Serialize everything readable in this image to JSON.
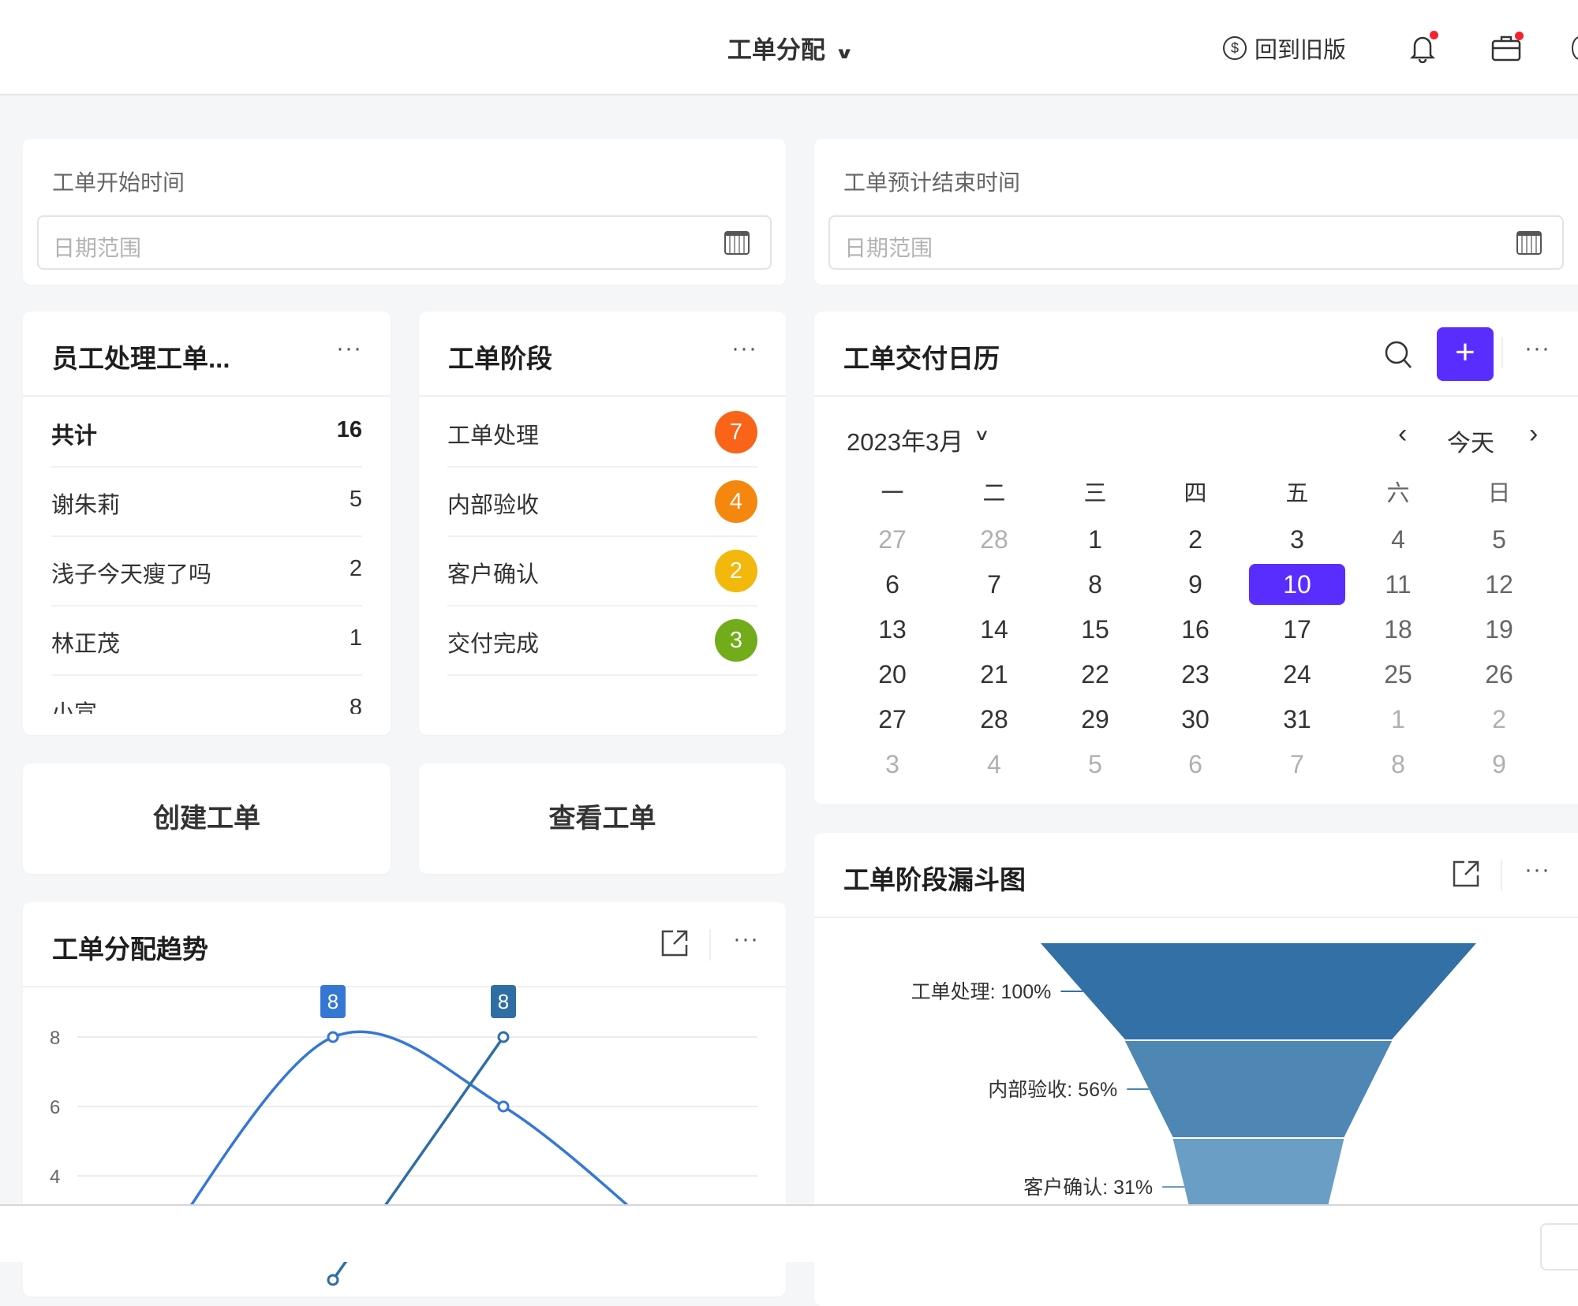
{
  "header": {
    "title": "工单分配",
    "old_version": "回到旧版",
    "icons": [
      "dollar-circle-icon",
      "bell-icon",
      "briefcase-icon"
    ],
    "notification_color": "#f5222d"
  },
  "filters": [
    {
      "label": "工单开始时间",
      "placeholder": "日期范围"
    },
    {
      "label": "工单预计结束时间",
      "placeholder": "日期范围"
    }
  ],
  "employee_card": {
    "title": "员工处理工单...",
    "more": "···",
    "rows": [
      {
        "name": "共计",
        "value": "16"
      },
      {
        "name": "谢朱莉",
        "value": "5"
      },
      {
        "name": "浅子今天瘦了吗",
        "value": "2"
      },
      {
        "name": "林正茂",
        "value": "1"
      },
      {
        "name": "小宣",
        "value": "8"
      }
    ]
  },
  "stage_card": {
    "title": "工单阶段",
    "more": "···",
    "rows": [
      {
        "name": "工单处理",
        "value": "7",
        "color": "#fa6419"
      },
      {
        "name": "内部验收",
        "value": "4",
        "color": "#f5870f"
      },
      {
        "name": "客户确认",
        "value": "2",
        "color": "#f2b90c"
      },
      {
        "name": "交付完成",
        "value": "3",
        "color": "#72ac1a"
      }
    ]
  },
  "actions": {
    "create": "创建工单",
    "view": "查看工单"
  },
  "calendar": {
    "title": "工单交付日历",
    "more": "···",
    "month": "2023年3月",
    "today": "今天",
    "accent": "#5a2dff",
    "weekdays": [
      "一",
      "二",
      "三",
      "四",
      "五",
      "六",
      "日"
    ],
    "weeks": [
      [
        "27",
        "28",
        "1",
        "2",
        "3",
        "4",
        "5"
      ],
      [
        "6",
        "7",
        "8",
        "9",
        "10",
        "11",
        "12"
      ],
      [
        "13",
        "14",
        "15",
        "16",
        "17",
        "18",
        "19"
      ],
      [
        "20",
        "21",
        "22",
        "23",
        "24",
        "25",
        "26"
      ],
      [
        "27",
        "28",
        "29",
        "30",
        "31",
        "1",
        "2"
      ],
      [
        "3",
        "4",
        "5",
        "6",
        "7",
        "8",
        "9"
      ]
    ],
    "selected": "10"
  },
  "trend": {
    "title": "工单分配趋势",
    "more": "···"
  },
  "funnel": {
    "title": "工单阶段漏斗图",
    "more": "···"
  },
  "chart_data": [
    {
      "type": "line",
      "title": "工单分配趋势",
      "yticks": [
        4,
        6,
        8
      ],
      "ylim": [
        0,
        8
      ],
      "grid": true,
      "series": [
        {
          "values": [
            2,
            8,
            6,
            2
          ],
          "color": "#3578d4",
          "smooth": true,
          "label_index": 1,
          "label": "8"
        },
        {
          "values": [
            null,
            1,
            8
          ],
          "color": "#2f6ea5",
          "smooth": false,
          "label_index": 2,
          "label": "8"
        }
      ]
    },
    {
      "type": "funnel",
      "title": "工单阶段漏斗图",
      "stages": [
        {
          "name": "工单处理",
          "percent": 100,
          "label": "工单处理: 100%",
          "color": "#3270a6"
        },
        {
          "name": "内部验收",
          "percent": 56,
          "label": "内部验收: 56%",
          "color": "#4e86b4"
        },
        {
          "name": "客户确认",
          "percent": 31,
          "label": "客户确认: 31%",
          "color": "#6b9ec4"
        }
      ]
    }
  ]
}
